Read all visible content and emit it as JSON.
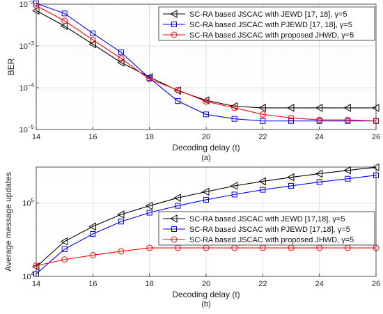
{
  "chart_data": [
    {
      "type": "line",
      "panel_caption": "(a)",
      "xlabel": "Decoding delay (t)",
      "ylabel": "BER",
      "xlim": [
        14,
        26
      ],
      "ylim": [
        1e-05,
        0.01
      ],
      "yscale": "log",
      "grid": true,
      "legend_position": "top-right",
      "x": [
        14,
        15,
        16,
        17,
        18,
        19,
        20,
        21,
        22,
        23,
        24,
        25,
        26
      ],
      "xticks": [
        "14",
        "16",
        "18",
        "20",
        "22",
        "24",
        "26"
      ],
      "yticks": [
        "10^-5",
        "10^-4",
        "10^-3",
        "10^-2"
      ],
      "series": [
        {
          "name": "SC-RA based JSCAC with JEWD [17, 18], γ=5",
          "color": "#000000",
          "marker": "triangle-left",
          "values": [
            0.007,
            0.003,
            0.0011,
            0.0004,
            0.00018,
            8.5e-05,
            5e-05,
            3.6e-05,
            3.3e-05,
            3.3e-05,
            3.3e-05,
            3.3e-05,
            3.3e-05
          ]
        },
        {
          "name": "SC-RA based JSCAC with PJEWD [17, 18], γ=5",
          "color": "#0000ff",
          "marker": "square",
          "values": [
            0.0105,
            0.006,
            0.002,
            0.0007,
            0.00017,
            4.8e-05,
            2.3e-05,
            1.8e-05,
            1.6e-05,
            1.6e-05,
            1.6e-05,
            1.6e-05,
            1.6e-05
          ]
        },
        {
          "name": "SC-RA based JSCAC with proposed JHWD, γ=5",
          "color": "#ff0000",
          "marker": "circle",
          "values": [
            0.0092,
            0.004,
            0.0014,
            0.0005,
            0.00016,
            8.8e-05,
            4.7e-05,
            3.3e-05,
            2.3e-05,
            1.9e-05,
            1.7e-05,
            1.7e-05,
            1.6e-05
          ]
        }
      ]
    },
    {
      "type": "line",
      "panel_caption": "(b)",
      "xlabel": "Decoding delay (t)",
      "ylabel": "Average message updates",
      "xlim": [
        14,
        26
      ],
      "ylim": [
        10000,
        310000
      ],
      "yscale": "log",
      "grid": true,
      "legend_position": "middle-right",
      "x": [
        14,
        15,
        16,
        17,
        18,
        19,
        20,
        21,
        22,
        23,
        24,
        25,
        26
      ],
      "xticks": [
        "14",
        "16",
        "18",
        "20",
        "22",
        "24",
        "26"
      ],
      "yticks": [
        "10^4",
        "10^5"
      ],
      "series": [
        {
          "name": "SC-RA based JSCAC with JEWD [17,18], γ=5",
          "color": "#000000",
          "marker": "triangle-left",
          "values": [
            13500,
            30000,
            48000,
            70000,
            92000,
            118000,
            143000,
            172000,
            198000,
            225000,
            252000,
            280000,
            308000
          ]
        },
        {
          "name": "SC-RA based JSCAC with PJEWD [17,18], γ=5",
          "color": "#0000ff",
          "marker": "square",
          "values": [
            10800,
            23500,
            38000,
            56000,
            74000,
            92000,
            111000,
            131000,
            152000,
            172000,
            194000,
            215000,
            240000
          ]
        },
        {
          "name": "SC-RA based JSCAC with proposed JHWD, γ=5",
          "color": "#ff0000",
          "marker": "circle",
          "values": [
            14000,
            17000,
            19500,
            22000,
            24500,
            24500,
            24500,
            24500,
            24500,
            24500,
            24500,
            24500,
            24500
          ]
        }
      ]
    }
  ]
}
